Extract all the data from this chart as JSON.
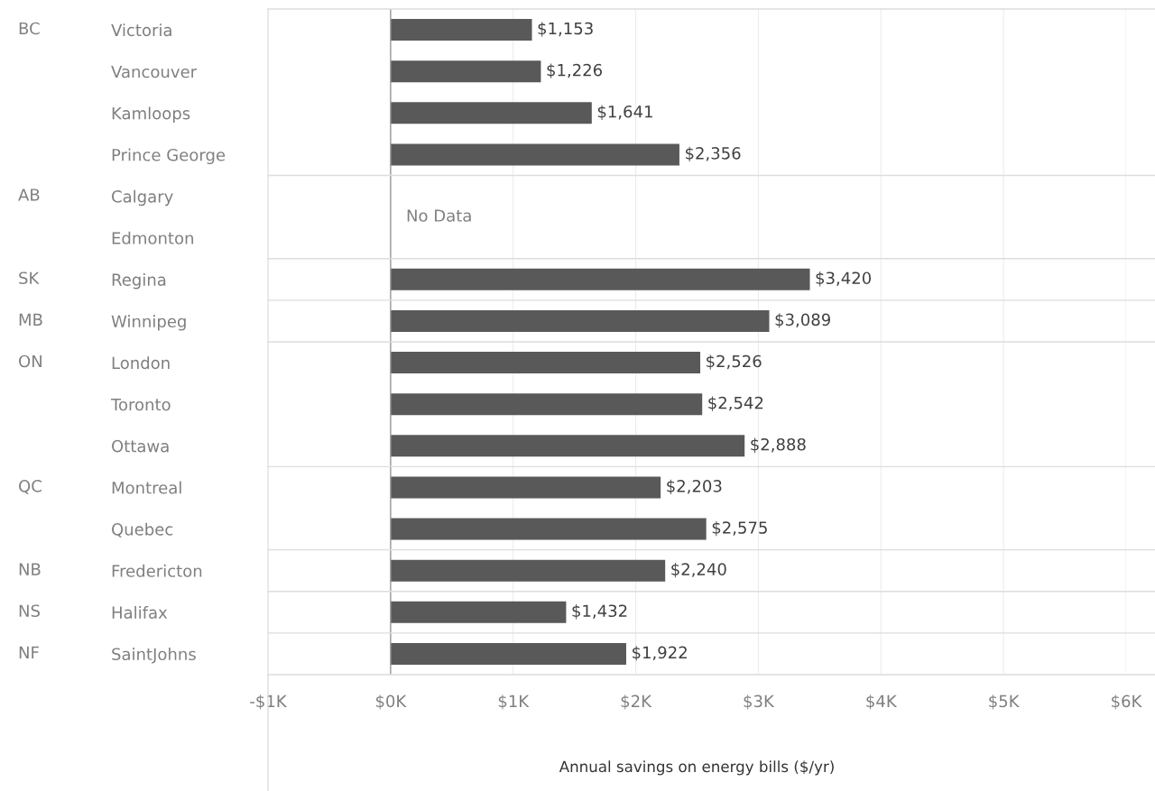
{
  "chart_data": {
    "type": "bar",
    "orientation": "horizontal",
    "xlabel": "Annual savings on energy bills ($/yr)",
    "categories": [
      "Victoria",
      "Vancouver",
      "Kamloops",
      "Prince George",
      "Calgary",
      "Edmonton",
      "Regina",
      "Winnipeg",
      "London",
      "Toronto",
      "Ottawa",
      "Montreal",
      "Quebec",
      "Fredericton",
      "Halifax",
      "SaintJohns"
    ],
    "values": [
      1153,
      1226,
      1641,
      2356,
      null,
      null,
      3420,
      3089,
      2526,
      2542,
      2888,
      2203,
      2575,
      2240,
      1432,
      1922
    ],
    "value_labels": [
      "$1,153",
      "$1,226",
      "$1,641",
      "$2,356",
      null,
      null,
      "$3,420",
      "$3,089",
      "$2,526",
      "$2,542",
      "$2,888",
      "$2,203",
      "$2,575",
      "$2,240",
      "$1,432",
      "$1,922"
    ],
    "color": "#595959",
    "xlim": [
      -1000,
      6000
    ],
    "xticks": [
      {
        "value": -1000,
        "label": "-$1K"
      },
      {
        "value": 0,
        "label": "$0K"
      },
      {
        "value": 1000,
        "label": "$1K"
      },
      {
        "value": 2000,
        "label": "$2K"
      },
      {
        "value": 3000,
        "label": "$3K"
      },
      {
        "value": 4000,
        "label": "$4K"
      },
      {
        "value": 5000,
        "label": "$5K"
      },
      {
        "value": 6000,
        "label": "$6K"
      }
    ],
    "grid": "x",
    "annotations": [
      "BC",
      "AB",
      "SK",
      "MB",
      "ON",
      "QC",
      "NB",
      "NS",
      "NF",
      "No Data"
    ]
  }
}
